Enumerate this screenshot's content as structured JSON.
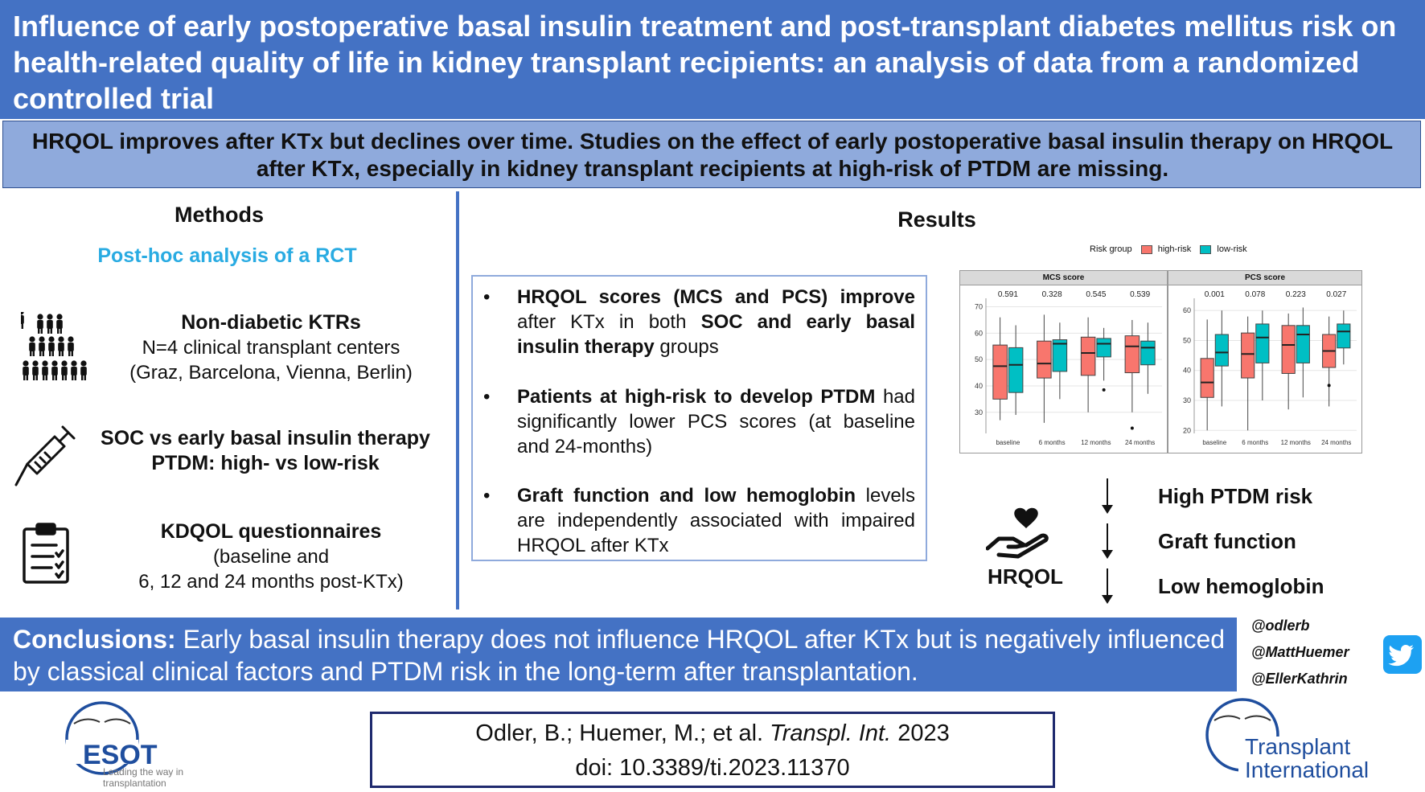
{
  "title": "Influence of early postoperative basal insulin treatment and post-transplant diabetes mellitus risk on health-related quality of life in kidney transplant recipients: an analysis of data from a randomized controlled trial",
  "lead": "HRQOL improves after KTx but declines over time. Studies on the effect of early postoperative basal insulin therapy on HRQOL after KTx, especially in kidney transplant recipients at high-risk of PTDM are missing.",
  "methods": {
    "heading": "Methods",
    "subheading": "Post-hoc analysis of a RCT",
    "blocks": [
      {
        "icon": "people-group-icon",
        "title": "Non-diabetic KTRs",
        "lines": [
          "N=4 clinical transplant centers",
          "(Graz, Barcelona, Vienna, Berlin)"
        ]
      },
      {
        "icon": "syringe-icon",
        "title_lines": [
          "SOC vs early basal insulin therapy",
          "PTDM: high- vs low-risk"
        ]
      },
      {
        "icon": "clipboard-checklist-icon",
        "title": "KDQOL questionnaires",
        "lines": [
          "(baseline and",
          "6, 12 and 24 months post-KTx)"
        ]
      }
    ]
  },
  "results": {
    "heading": "Results",
    "findings": [
      {
        "bold": "HRQOL scores (MCS and PCS) improve",
        "mid": "after KTx in both",
        "bold2": "SOC and early basal insulin therapy",
        "tail": "groups"
      },
      {
        "bold": "Patients at high-risk to develop PTDM",
        "tail": "had significantly lower PCS scores (at baseline and 24-months)"
      },
      {
        "bold": "Graft function and low hemoglobin",
        "tail": "levels are independently associated with impaired HRQOL after KTx"
      }
    ],
    "hrqol_label": "HRQOL",
    "factors": [
      "High PTDM risk",
      "Graft function",
      "Low hemoglobin"
    ]
  },
  "chart_data": [
    {
      "type": "box",
      "title": "MCS score",
      "legend_title": "Risk group",
      "series_names": [
        "high-risk",
        "low-risk"
      ],
      "colors": {
        "high-risk": "#f8766d",
        "low-risk": "#00bfc4"
      },
      "categories": [
        "baseline",
        "6 months",
        "12 months",
        "24 months"
      ],
      "p_values": [
        "0.591",
        "0.328",
        "0.545",
        "0.539"
      ],
      "ylim": [
        22,
        72
      ],
      "yticks": [
        30,
        40,
        50,
        60,
        70
      ],
      "boxes": {
        "high-risk": [
          {
            "min": 27,
            "q1": 35,
            "median": 47.5,
            "q3": 55.5,
            "max": 66,
            "outliers": []
          },
          {
            "min": 26,
            "q1": 43,
            "median": 48.5,
            "q3": 57,
            "max": 67,
            "outliers": []
          },
          {
            "min": 30,
            "q1": 44,
            "median": 52.5,
            "q3": 58.5,
            "max": 66,
            "outliers": []
          },
          {
            "min": 30,
            "q1": 45,
            "median": 55,
            "q3": 59,
            "max": 65,
            "outliers": [
              24
            ]
          }
        ],
        "low-risk": [
          {
            "min": 29,
            "q1": 37.5,
            "median": 48,
            "q3": 54.5,
            "max": 63,
            "outliers": []
          },
          {
            "min": 35,
            "q1": 45.5,
            "median": 56,
            "q3": 57.5,
            "max": 64,
            "outliers": []
          },
          {
            "min": 42,
            "q1": 51,
            "median": 56,
            "q3": 58,
            "max": 62,
            "outliers": [
              38.5
            ]
          },
          {
            "min": 37,
            "q1": 48,
            "median": 54.5,
            "q3": 57,
            "max": 64,
            "outliers": []
          }
        ]
      }
    },
    {
      "type": "box",
      "title": "PCS score",
      "series_names": [
        "high-risk",
        "low-risk"
      ],
      "colors": {
        "high-risk": "#f8766d",
        "low-risk": "#00bfc4"
      },
      "categories": [
        "baseline",
        "6 months",
        "12 months",
        "24 months"
      ],
      "p_values": [
        "0.001",
        "0.078",
        "0.223",
        "0.027"
      ],
      "ylim": [
        19,
        63
      ],
      "yticks": [
        20,
        30,
        40,
        50,
        60
      ],
      "boxes": {
        "high-risk": [
          {
            "min": 20,
            "q1": 31,
            "median": 36,
            "q3": 44,
            "max": 57,
            "outliers": []
          },
          {
            "min": 20,
            "q1": 37.5,
            "median": 45.5,
            "q3": 52.5,
            "max": 58,
            "outliers": []
          },
          {
            "min": 27,
            "q1": 39,
            "median": 48.5,
            "q3": 55,
            "max": 59,
            "outliers": []
          },
          {
            "min": 28,
            "q1": 41,
            "median": 46.5,
            "q3": 52,
            "max": 58,
            "outliers": [
              35
            ]
          }
        ],
        "low-risk": [
          {
            "min": 28,
            "q1": 41.5,
            "median": 46,
            "q3": 52,
            "max": 60,
            "outliers": []
          },
          {
            "min": 30,
            "q1": 42.5,
            "median": 51,
            "q3": 55.5,
            "max": 60,
            "outliers": []
          },
          {
            "min": 31,
            "q1": 42.5,
            "median": 52,
            "q3": 55,
            "max": 61,
            "outliers": []
          },
          {
            "min": 42,
            "q1": 47.5,
            "median": 53,
            "q3": 55.5,
            "max": 60,
            "outliers": []
          }
        ]
      }
    }
  ],
  "conclusion": {
    "label": "Conclusions:",
    "text": "Early basal insulin therapy does not influence HRQOL after KTx but is negatively influenced by classical clinical factors and PTDM risk in the long-term after transplantation."
  },
  "handles": [
    "@odlerb",
    "@MattHuemer",
    "@EllerKathrin"
  ],
  "citation": {
    "authors": "Odler, B.; Huemer, M.; et al.",
    "journal": "Transpl. Int.",
    "year": "2023",
    "doi": "doi: 10.3389/ti.2023.11370"
  },
  "logos": {
    "esot": "ESOT",
    "esot_tagline": "Leading the way in transplantation",
    "ti_line1": "Transplant",
    "ti_line2": "International"
  },
  "colors": {
    "primary": "#4472c4",
    "lead_bg": "#8faadc",
    "accent_cyan": "#29abe2",
    "twitter": "#1da1f2"
  }
}
